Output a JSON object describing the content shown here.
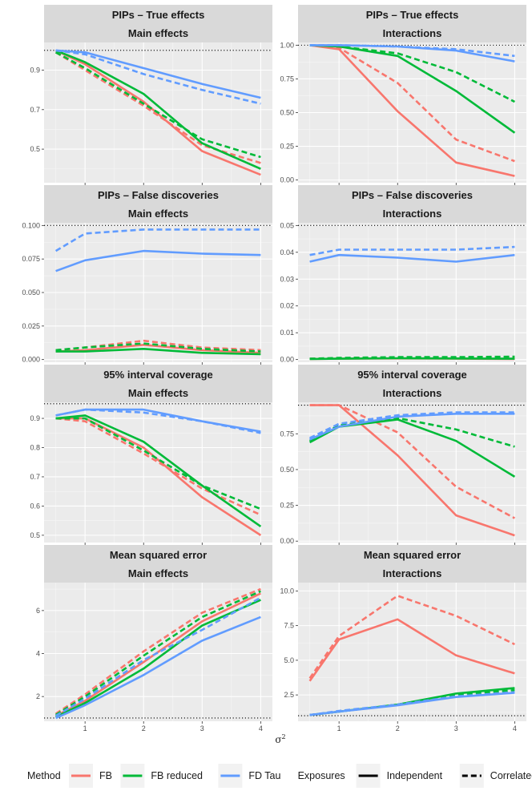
{
  "x_axis_label": "σ",
  "x_axis_label_sup": "2",
  "legend": {
    "method_title": "Method",
    "methods": [
      {
        "key": "FB",
        "label": "FB",
        "color": "#F8766D"
      },
      {
        "key": "FBR",
        "label": "FB reduced",
        "color": "#00BA38"
      },
      {
        "key": "FDT",
        "label": "FD Tau",
        "color": "#619CFF"
      }
    ],
    "exposure_title": "Exposures",
    "exposures": [
      {
        "key": "ind",
        "label": "Independent",
        "dash": "solid"
      },
      {
        "key": "cor",
        "label": "Correlated",
        "dash": "dashed"
      }
    ]
  },
  "chart_data": [
    {
      "type": "line",
      "title": "PIPs – True effects",
      "subtitle": "Main effects",
      "xlim": [
        0.3,
        4.2
      ],
      "ylim": [
        0.33,
        1.04
      ],
      "yticks": [
        0.5,
        0.7,
        0.9
      ],
      "ytick_labels": [
        "0.5",
        "0.7",
        "0.9"
      ],
      "xticks": [
        1,
        2,
        3,
        4
      ],
      "ref_line": 1.0,
      "x": [
        0.5,
        1,
        2,
        3,
        4
      ],
      "series": [
        {
          "method": "FB",
          "exposure": "ind",
          "values": [
            1.0,
            0.93,
            0.74,
            0.49,
            0.37
          ]
        },
        {
          "method": "FB",
          "exposure": "cor",
          "values": [
            0.99,
            0.9,
            0.72,
            0.52,
            0.43
          ]
        },
        {
          "method": "FBR",
          "exposure": "ind",
          "values": [
            1.0,
            0.94,
            0.78,
            0.53,
            0.4
          ]
        },
        {
          "method": "FBR",
          "exposure": "cor",
          "values": [
            0.99,
            0.91,
            0.73,
            0.55,
            0.46
          ]
        },
        {
          "method": "FDT",
          "exposure": "ind",
          "values": [
            1.0,
            0.99,
            0.91,
            0.83,
            0.76
          ]
        },
        {
          "method": "FDT",
          "exposure": "cor",
          "values": [
            1.0,
            0.98,
            0.88,
            0.8,
            0.73
          ]
        }
      ]
    },
    {
      "type": "line",
      "title": "PIPs – True effects",
      "subtitle": "Interactions",
      "xlim": [
        0.3,
        4.2
      ],
      "ylim": [
        -0.02,
        1.02
      ],
      "yticks": [
        0,
        0.25,
        0.5,
        0.75,
        1.0
      ],
      "ytick_labels": [
        "0.00",
        "0.25",
        "0.50",
        "0.75",
        "1.00"
      ],
      "xticks": [
        1,
        2,
        3,
        4
      ],
      "ref_line": 1.0,
      "x": [
        0.5,
        1,
        2,
        3,
        4
      ],
      "series": [
        {
          "method": "FB",
          "exposure": "ind",
          "values": [
            1.0,
            0.97,
            0.51,
            0.13,
            0.03
          ]
        },
        {
          "method": "FB",
          "exposure": "cor",
          "values": [
            1.0,
            0.98,
            0.72,
            0.3,
            0.14
          ]
        },
        {
          "method": "FBR",
          "exposure": "ind",
          "values": [
            1.0,
            0.99,
            0.92,
            0.66,
            0.35
          ]
        },
        {
          "method": "FBR",
          "exposure": "cor",
          "values": [
            1.0,
            0.99,
            0.94,
            0.8,
            0.58
          ]
        },
        {
          "method": "FDT",
          "exposure": "ind",
          "values": [
            1.0,
            1.0,
            0.99,
            0.96,
            0.88
          ]
        },
        {
          "method": "FDT",
          "exposure": "cor",
          "values": [
            1.0,
            1.0,
            0.99,
            0.97,
            0.92
          ]
        }
      ]
    },
    {
      "type": "line",
      "title": "PIPs – False discoveries",
      "subtitle": "Main effects",
      "xlim": [
        0.3,
        4.2
      ],
      "ylim": [
        -0.002,
        0.102
      ],
      "yticks": [
        0,
        0.025,
        0.05,
        0.075,
        0.1
      ],
      "ytick_labels": [
        "0.000",
        "0.025",
        "0.050",
        "0.075",
        "0.100"
      ],
      "xticks": [
        1,
        2,
        3,
        4
      ],
      "ref_line": 0.1,
      "x": [
        0.5,
        1,
        2,
        3,
        4
      ],
      "series": [
        {
          "method": "FB",
          "exposure": "ind",
          "values": [
            0.006,
            0.007,
            0.011,
            0.007,
            0.005
          ]
        },
        {
          "method": "FB",
          "exposure": "cor",
          "values": [
            0.007,
            0.009,
            0.014,
            0.009,
            0.007
          ]
        },
        {
          "method": "FBR",
          "exposure": "ind",
          "values": [
            0.006,
            0.006,
            0.008,
            0.005,
            0.004
          ]
        },
        {
          "method": "FBR",
          "exposure": "cor",
          "values": [
            0.007,
            0.009,
            0.012,
            0.008,
            0.006
          ]
        },
        {
          "method": "FDT",
          "exposure": "ind",
          "values": [
            0.066,
            0.074,
            0.081,
            0.079,
            0.078
          ]
        },
        {
          "method": "FDT",
          "exposure": "cor",
          "values": [
            0.081,
            0.094,
            0.097,
            0.097,
            0.097
          ]
        }
      ]
    },
    {
      "type": "line",
      "title": "PIPs – False discoveries",
      "subtitle": "Interactions",
      "xlim": [
        0.3,
        4.2
      ],
      "ylim": [
        -0.001,
        0.051
      ],
      "yticks": [
        0,
        0.01,
        0.02,
        0.03,
        0.04,
        0.05
      ],
      "ytick_labels": [
        "0.00",
        "0.01",
        "0.02",
        "0.03",
        "0.04",
        "0.05"
      ],
      "xticks": [
        1,
        2,
        3,
        4
      ],
      "ref_line": 0.05,
      "x": [
        0.5,
        1,
        2,
        3,
        4
      ],
      "series": [
        {
          "method": "FB",
          "exposure": "ind",
          "values": [
            0.0002,
            0.0003,
            0.0004,
            0.0003,
            0.0002
          ]
        },
        {
          "method": "FB",
          "exposure": "cor",
          "values": [
            0.0003,
            0.0005,
            0.0008,
            0.0007,
            0.0005
          ]
        },
        {
          "method": "FBR",
          "exposure": "ind",
          "values": [
            0.0002,
            0.0003,
            0.0005,
            0.0004,
            0.0003
          ]
        },
        {
          "method": "FBR",
          "exposure": "cor",
          "values": [
            0.0003,
            0.0006,
            0.0009,
            0.0009,
            0.0011
          ]
        },
        {
          "method": "FDT",
          "exposure": "ind",
          "values": [
            0.0365,
            0.039,
            0.038,
            0.0365,
            0.039
          ]
        },
        {
          "method": "FDT",
          "exposure": "cor",
          "values": [
            0.039,
            0.041,
            0.041,
            0.041,
            0.042
          ]
        }
      ]
    },
    {
      "type": "line",
      "title": "95% interval coverage",
      "subtitle": "Main effects",
      "xlim": [
        0.3,
        4.2
      ],
      "ylim": [
        0.475,
        0.955
      ],
      "yticks": [
        0.5,
        0.6,
        0.7,
        0.8,
        0.9
      ],
      "ytick_labels": [
        "0.5",
        "0.6",
        "0.7",
        "0.8",
        "0.9"
      ],
      "xticks": [
        1,
        2,
        3,
        4
      ],
      "ref_line": 0.95,
      "x": [
        0.5,
        1,
        2,
        3,
        4
      ],
      "series": [
        {
          "method": "FB",
          "exposure": "ind",
          "values": [
            0.9,
            0.9,
            0.8,
            0.63,
            0.5
          ]
        },
        {
          "method": "FB",
          "exposure": "cor",
          "values": [
            0.9,
            0.89,
            0.78,
            0.66,
            0.57
          ]
        },
        {
          "method": "FBR",
          "exposure": "ind",
          "values": [
            0.9,
            0.91,
            0.82,
            0.67,
            0.53
          ]
        },
        {
          "method": "FBR",
          "exposure": "cor",
          "values": [
            0.9,
            0.9,
            0.79,
            0.67,
            0.59
          ]
        },
        {
          "method": "FDT",
          "exposure": "ind",
          "values": [
            0.91,
            0.93,
            0.93,
            0.89,
            0.855
          ]
        },
        {
          "method": "FDT",
          "exposure": "cor",
          "values": [
            0.91,
            0.93,
            0.92,
            0.89,
            0.85
          ]
        }
      ]
    },
    {
      "type": "line",
      "title": "95% interval coverage",
      "subtitle": "Interactions",
      "xlim": [
        0.3,
        4.2
      ],
      "ylim": [
        -0.01,
        0.97
      ],
      "yticks": [
        0,
        0.25,
        0.5,
        0.75
      ],
      "ytick_labels": [
        "0.00",
        "0.25",
        "0.50",
        "0.75"
      ],
      "xticks": [
        1,
        2,
        3,
        4
      ],
      "ref_line": 0.95,
      "x": [
        0.5,
        1,
        2,
        3,
        4
      ],
      "series": [
        {
          "method": "FB",
          "exposure": "ind",
          "values": [
            0.95,
            0.95,
            0.6,
            0.18,
            0.04
          ]
        },
        {
          "method": "FB",
          "exposure": "cor",
          "values": [
            0.95,
            0.95,
            0.76,
            0.38,
            0.16
          ]
        },
        {
          "method": "FBR",
          "exposure": "ind",
          "values": [
            0.69,
            0.8,
            0.85,
            0.7,
            0.45
          ]
        },
        {
          "method": "FBR",
          "exposure": "cor",
          "values": [
            0.7,
            0.81,
            0.86,
            0.78,
            0.66
          ]
        },
        {
          "method": "FDT",
          "exposure": "ind",
          "values": [
            0.71,
            0.8,
            0.87,
            0.89,
            0.89
          ]
        },
        {
          "method": "FDT",
          "exposure": "cor",
          "values": [
            0.72,
            0.82,
            0.88,
            0.9,
            0.9
          ]
        }
      ]
    },
    {
      "type": "line",
      "title": "Mean squared error",
      "subtitle": "Main effects",
      "xlim": [
        0.3,
        4.2
      ],
      "ylim": [
        0.85,
        7.3
      ],
      "yticks": [
        2,
        4,
        6
      ],
      "ytick_labels": [
        "2",
        "4",
        "6"
      ],
      "xticks": [
        1,
        2,
        3,
        4
      ],
      "ref_line": 1.0,
      "x": [
        0.5,
        1,
        2,
        3,
        4
      ],
      "series": [
        {
          "method": "FB",
          "exposure": "ind",
          "values": [
            1.1,
            1.8,
            3.6,
            5.5,
            6.8
          ]
        },
        {
          "method": "FB",
          "exposure": "cor",
          "values": [
            1.2,
            2.1,
            4.1,
            5.9,
            7.0
          ]
        },
        {
          "method": "FBR",
          "exposure": "ind",
          "values": [
            1.05,
            1.7,
            3.3,
            5.3,
            6.5
          ]
        },
        {
          "method": "FBR",
          "exposure": "cor",
          "values": [
            1.15,
            2.0,
            3.9,
            5.7,
            6.9
          ]
        },
        {
          "method": "FDT",
          "exposure": "ind",
          "values": [
            1.0,
            1.6,
            3.0,
            4.6,
            5.7
          ]
        },
        {
          "method": "FDT",
          "exposure": "cor",
          "values": [
            1.1,
            1.9,
            3.7,
            5.1,
            6.6
          ]
        }
      ]
    },
    {
      "type": "line",
      "title": "Mean squared error",
      "subtitle": "Interactions",
      "xlim": [
        0.3,
        4.2
      ],
      "ylim": [
        0.6,
        10.6
      ],
      "yticks": [
        2.5,
        5.0,
        7.5,
        10.0
      ],
      "ytick_labels": [
        "2.5",
        "5.0",
        "7.5",
        "10.0"
      ],
      "xticks": [
        1,
        2,
        3,
        4
      ],
      "ref_line": 1.0,
      "x": [
        0.5,
        1,
        2,
        3,
        4
      ],
      "series": [
        {
          "method": "FB",
          "exposure": "ind",
          "values": [
            3.5,
            6.5,
            7.95,
            5.35,
            4.05
          ]
        },
        {
          "method": "FB",
          "exposure": "cor",
          "values": [
            3.7,
            6.75,
            9.65,
            8.2,
            6.15
          ]
        },
        {
          "method": "FBR",
          "exposure": "ind",
          "values": [
            1.05,
            1.3,
            1.8,
            2.6,
            3.0
          ]
        },
        {
          "method": "FBR",
          "exposure": "cor",
          "values": [
            1.05,
            1.3,
            1.8,
            2.5,
            2.85
          ]
        },
        {
          "method": "FDT",
          "exposure": "ind",
          "values": [
            1.05,
            1.3,
            1.75,
            2.35,
            2.65
          ]
        },
        {
          "method": "FDT",
          "exposure": "cor",
          "values": [
            1.05,
            1.35,
            1.8,
            2.4,
            2.7
          ]
        }
      ]
    }
  ]
}
